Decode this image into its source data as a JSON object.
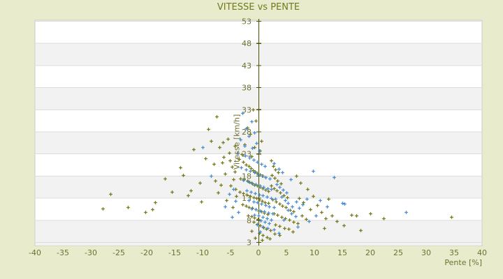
{
  "page": {
    "background": "#e8eccd"
  },
  "chart_data": {
    "type": "scatter",
    "title": "VITESSE vs PENTE",
    "xlabel": "Pente [%]",
    "ylabel": "Vitesse [km/h]",
    "xlim": [
      -40,
      40
    ],
    "ylim": [
      3,
      53
    ],
    "x_ticks": [
      -40,
      -35,
      -30,
      -25,
      -20,
      -15,
      -10,
      -5,
      0,
      5,
      10,
      15,
      20,
      25,
      30,
      35,
      40
    ],
    "y_ticks": [
      3,
      8,
      13,
      18,
      23,
      28,
      33,
      38,
      43,
      48,
      53
    ],
    "legend_position": "none",
    "grid": "alternating-horizontal-bands",
    "vertical_axis_at_x": 0,
    "colors": {
      "background": "#e8eccd",
      "plot_bg": "#ffffff",
      "band": "#f2f2f2",
      "gridline": "#dcdcdc",
      "border": "#c8c8c8",
      "axis_line": "#4c4f00",
      "title": "#72791e",
      "tick_label": "#6e7030"
    },
    "series": [
      {
        "name": "serie-olive",
        "color": "#77791e",
        "marker": "plus",
        "points": [
          [
            -27.9,
            10.7
          ],
          [
            -26.5,
            14.0
          ],
          [
            -23.4,
            10.9
          ],
          [
            -20.3,
            9.8
          ],
          [
            -19.0,
            10.5
          ],
          [
            -18.5,
            12.0
          ],
          [
            -16.8,
            17.4
          ],
          [
            -15.5,
            14.5
          ],
          [
            -14.0,
            20.0
          ],
          [
            -13.5,
            18.2
          ],
          [
            -12.6,
            13.7
          ],
          [
            -12.1,
            14.8
          ],
          [
            -11.6,
            24.1
          ],
          [
            -10.5,
            16.5
          ],
          [
            -10.2,
            12.3
          ],
          [
            -9.5,
            22.0
          ],
          [
            -9.0,
            28.7
          ],
          [
            -8.5,
            25.9
          ],
          [
            -8.0,
            20.8
          ],
          [
            -7.8,
            17.0
          ],
          [
            -7.5,
            31.4
          ],
          [
            -7.2,
            14.2
          ],
          [
            -7.0,
            24.5
          ],
          [
            -6.8,
            16.0
          ],
          [
            -6.5,
            21.0
          ],
          [
            -6.4,
            25.6
          ],
          [
            -6.2,
            22.4
          ],
          [
            -6.0,
            18.5
          ],
          [
            -5.8,
            12.5
          ],
          [
            -5.5,
            26.5
          ],
          [
            -5.2,
            23.2
          ],
          [
            -5.1,
            21.5
          ],
          [
            -5.0,
            15.8
          ],
          [
            -4.8,
            20.1
          ],
          [
            -4.6,
            11.0
          ],
          [
            -4.5,
            17.3
          ],
          [
            -4.3,
            19.0
          ],
          [
            -4.2,
            24.8
          ],
          [
            -4.1,
            15.0
          ],
          [
            -4.0,
            13.5
          ],
          [
            -1.0,
            33.0
          ],
          [
            -0.5,
            30.5
          ],
          [
            -2.0,
            29.0
          ],
          [
            -1.5,
            27.5
          ],
          [
            0.5,
            26.0
          ],
          [
            -2.5,
            25.2
          ],
          [
            -0.8,
            24.6
          ],
          [
            0.2,
            23.8
          ],
          [
            -3.0,
            23.0
          ],
          [
            -1.2,
            22.5
          ],
          [
            -3.5,
            21.8
          ],
          [
            -2.8,
            21.2
          ],
          [
            -2.2,
            20.6
          ],
          [
            -1.8,
            20.2
          ],
          [
            -1.4,
            19.8
          ],
          [
            -1.0,
            19.4
          ],
          [
            -0.6,
            19.0
          ],
          [
            -0.2,
            18.7
          ],
          [
            0.3,
            18.4
          ],
          [
            0.8,
            18.0
          ],
          [
            1.3,
            17.7
          ],
          [
            -3.2,
            17.5
          ],
          [
            -2.6,
            17.2
          ],
          [
            -2.0,
            16.9
          ],
          [
            -1.6,
            16.6
          ],
          [
            -1.1,
            16.3
          ],
          [
            -0.7,
            16.0
          ],
          [
            -0.3,
            15.8
          ],
          [
            0.2,
            15.5
          ],
          [
            0.7,
            15.2
          ],
          [
            1.2,
            14.9
          ],
          [
            1.8,
            14.6
          ],
          [
            -3.4,
            14.4
          ],
          [
            -2.7,
            14.1
          ],
          [
            -2.1,
            13.8
          ],
          [
            -1.5,
            13.5
          ],
          [
            -0.9,
            13.2
          ],
          [
            -0.4,
            13.0
          ],
          [
            0.1,
            12.7
          ],
          [
            0.6,
            12.4
          ],
          [
            1.1,
            12.1
          ],
          [
            1.7,
            11.9
          ],
          [
            -2.9,
            11.6
          ],
          [
            -2.3,
            11.3
          ],
          [
            -1.7,
            11.0
          ],
          [
            -1.1,
            10.8
          ],
          [
            -0.5,
            10.5
          ],
          [
            0.0,
            10.2
          ],
          [
            0.5,
            10.0
          ],
          [
            1.0,
            9.7
          ],
          [
            1.6,
            9.4
          ],
          [
            -1.9,
            9.1
          ],
          [
            -1.3,
            8.9
          ],
          [
            -0.7,
            8.6
          ],
          [
            -0.1,
            8.3
          ],
          [
            0.4,
            8.0
          ],
          [
            -0.9,
            7.6
          ],
          [
            -0.3,
            7.2
          ],
          [
            0.3,
            6.8
          ],
          [
            0.9,
            6.4
          ],
          [
            1.4,
            6.0
          ],
          [
            -1.2,
            5.6
          ],
          [
            0.1,
            5.2
          ],
          [
            0.8,
            4.7
          ],
          [
            1.5,
            4.2
          ],
          [
            -0.6,
            4.0
          ],
          [
            2.0,
            3.8
          ],
          [
            0.6,
            3.5
          ],
          [
            2.2,
            21.5
          ],
          [
            2.6,
            20.3
          ],
          [
            3.0,
            19.5
          ],
          [
            3.5,
            18.8
          ],
          [
            2.4,
            18.2
          ],
          [
            2.9,
            17.6
          ],
          [
            3.4,
            17.0
          ],
          [
            4.0,
            16.4
          ],
          [
            2.3,
            15.9
          ],
          [
            2.8,
            15.3
          ],
          [
            3.3,
            14.8
          ],
          [
            3.9,
            14.2
          ],
          [
            4.5,
            13.7
          ],
          [
            5.1,
            13.2
          ],
          [
            2.5,
            12.7
          ],
          [
            3.1,
            12.2
          ],
          [
            3.7,
            11.8
          ],
          [
            4.3,
            11.3
          ],
          [
            4.9,
            10.9
          ],
          [
            5.6,
            10.4
          ],
          [
            6.3,
            10.0
          ],
          [
            2.7,
            9.6
          ],
          [
            3.4,
            9.2
          ],
          [
            4.1,
            8.8
          ],
          [
            4.8,
            8.4
          ],
          [
            5.5,
            8.1
          ],
          [
            6.2,
            7.7
          ],
          [
            7.0,
            7.4
          ],
          [
            3.0,
            7.0
          ],
          [
            3.8,
            6.7
          ],
          [
            4.6,
            6.3
          ],
          [
            5.4,
            6.0
          ],
          [
            2.1,
            5.7
          ],
          [
            6.1,
            5.4
          ],
          [
            2.9,
            5.0
          ],
          [
            3.7,
            4.6
          ],
          [
            7.8,
            9.0
          ],
          [
            8.5,
            8.3
          ],
          [
            9.2,
            10.5
          ],
          [
            8.0,
            12.0
          ],
          [
            9.8,
            13.5
          ],
          [
            8.8,
            15.0
          ],
          [
            7.5,
            16.5
          ],
          [
            6.8,
            18.0
          ],
          [
            7.2,
            13.0
          ],
          [
            10.5,
            11.5
          ],
          [
            11.2,
            9.8
          ],
          [
            12.0,
            8.5
          ],
          [
            13.1,
            9.0
          ],
          [
            14.0,
            7.8
          ],
          [
            15.2,
            6.9
          ],
          [
            16.6,
            9.3
          ],
          [
            17.5,
            9.1
          ],
          [
            20.0,
            9.5
          ],
          [
            22.4,
            8.5
          ],
          [
            34.5,
            8.7
          ],
          [
            12.5,
            12.8
          ],
          [
            11.8,
            6.2
          ],
          [
            18.3,
            5.8
          ]
        ]
      },
      {
        "name": "serie-blue",
        "color": "#478fd2",
        "marker": "plus",
        "points": [
          [
            -10.0,
            24.5
          ],
          [
            -8.5,
            18.1
          ],
          [
            -6.0,
            11.1
          ],
          [
            -5.2,
            13.9
          ],
          [
            -4.8,
            8.8
          ],
          [
            -4.5,
            15.1
          ],
          [
            -4.1,
            12.4
          ],
          [
            -3.6,
            9.8
          ],
          [
            -2.9,
            32.2
          ],
          [
            -1.3,
            30.3
          ],
          [
            -2.2,
            28.8
          ],
          [
            -0.8,
            27.9
          ],
          [
            -1.8,
            27.0
          ],
          [
            -3.3,
            26.2
          ],
          [
            -0.4,
            25.5
          ],
          [
            -2.5,
            24.9
          ],
          [
            -1.1,
            24.3
          ],
          [
            0.1,
            23.7
          ],
          [
            -3.8,
            23.1
          ],
          [
            -2.4,
            22.6
          ],
          [
            -1.6,
            22.1
          ],
          [
            -0.9,
            21.7
          ],
          [
            -0.2,
            21.2
          ],
          [
            0.5,
            20.8
          ],
          [
            1.1,
            20.3
          ],
          [
            -3.1,
            19.9
          ],
          [
            -2.3,
            19.5
          ],
          [
            -1.5,
            19.1
          ],
          [
            -0.8,
            18.8
          ],
          [
            -0.1,
            18.4
          ],
          [
            0.6,
            18.1
          ],
          [
            1.3,
            17.8
          ],
          [
            2.0,
            17.4
          ],
          [
            -2.7,
            17.1
          ],
          [
            -1.9,
            16.8
          ],
          [
            -1.2,
            16.5
          ],
          [
            -0.5,
            16.2
          ],
          [
            0.2,
            15.9
          ],
          [
            0.9,
            15.6
          ],
          [
            1.6,
            15.3
          ],
          [
            2.3,
            15.0
          ],
          [
            -2.1,
            14.7
          ],
          [
            -1.4,
            14.4
          ],
          [
            -0.6,
            14.1
          ],
          [
            0.1,
            13.8
          ],
          [
            0.8,
            13.6
          ],
          [
            1.5,
            13.3
          ],
          [
            2.2,
            13.0
          ],
          [
            3.0,
            12.8
          ],
          [
            -1.7,
            12.5
          ],
          [
            -0.9,
            12.2
          ],
          [
            -0.2,
            12.0
          ],
          [
            0.5,
            11.7
          ],
          [
            1.2,
            11.5
          ],
          [
            1.9,
            11.2
          ],
          [
            2.7,
            11.0
          ],
          [
            -1.3,
            10.7
          ],
          [
            -0.5,
            10.5
          ],
          [
            0.3,
            10.2
          ],
          [
            1.0,
            10.0
          ],
          [
            1.8,
            9.7
          ],
          [
            2.5,
            9.5
          ],
          [
            -0.8,
            9.2
          ],
          [
            0.0,
            9.0
          ],
          [
            0.7,
            8.7
          ],
          [
            1.5,
            8.5
          ],
          [
            2.3,
            8.2
          ],
          [
            0.4,
            7.9
          ],
          [
            1.1,
            7.6
          ],
          [
            1.9,
            7.3
          ],
          [
            -0.3,
            7.0
          ],
          [
            0.8,
            6.6
          ],
          [
            1.6,
            6.2
          ],
          [
            2.8,
            5.9
          ],
          [
            0.2,
            5.5
          ],
          [
            3.6,
            5.1
          ],
          [
            3.2,
            16.2
          ],
          [
            3.8,
            15.5
          ],
          [
            4.4,
            14.9
          ],
          [
            5.0,
            14.3
          ],
          [
            4.1,
            13.4
          ],
          [
            4.7,
            12.6
          ],
          [
            5.3,
            11.9
          ],
          [
            6.0,
            11.2
          ],
          [
            5.2,
            10.3
          ],
          [
            5.9,
            9.6
          ],
          [
            6.6,
            8.9
          ],
          [
            4.5,
            8.1
          ],
          [
            7.3,
            10.8
          ],
          [
            6.7,
            12.3
          ],
          [
            7.9,
            11.6
          ],
          [
            8.6,
            12.9
          ],
          [
            2.8,
            20.9
          ],
          [
            3.6,
            19.7
          ],
          [
            4.3,
            18.9
          ],
          [
            5.8,
            17.2
          ],
          [
            9.75,
            19.2
          ],
          [
            13.5,
            17.8
          ],
          [
            15.0,
            11.9
          ],
          [
            15.4,
            11.8
          ],
          [
            26.4,
            9.8
          ],
          [
            10.2,
            9.0
          ],
          [
            11.0,
            12.5
          ],
          [
            12.2,
            11.1
          ],
          [
            9.0,
            7.8
          ],
          [
            7.0,
            6.5
          ]
        ]
      }
    ]
  }
}
